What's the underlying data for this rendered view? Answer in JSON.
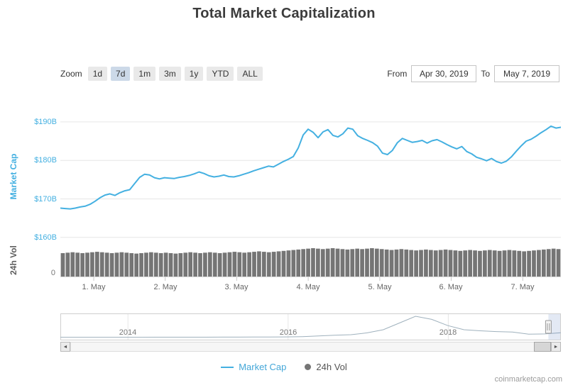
{
  "title": "Total Market Capitalization",
  "attribution": "coinmarketcap.com",
  "toolbar": {
    "zoom_label": "Zoom",
    "zoom_options": [
      "1d",
      "7d",
      "1m",
      "3m",
      "1y",
      "YTD",
      "ALL"
    ],
    "selected_zoom": "7d",
    "from_label": "From",
    "from_value": "Apr 30, 2019",
    "to_label": "To",
    "to_value": "May 7, 2019"
  },
  "legend": {
    "items": [
      {
        "label": "Market Cap",
        "color": "#44b0e1"
      },
      {
        "label": "24h Vol",
        "color": "#757575"
      }
    ]
  },
  "chart_data": {
    "type": "line",
    "title": "Total Market Capitalization",
    "y_axis_title": "Market Cap",
    "volume_axis_title": "24h Vol",
    "ylim": [
      160,
      192
    ],
    "y_ticks": [
      {
        "label": "$190B",
        "value": 190
      },
      {
        "label": "$180B",
        "value": 180
      },
      {
        "label": "$170B",
        "value": 170
      },
      {
        "label": "$160B",
        "value": 160
      }
    ],
    "volume_ticks": [
      "0"
    ],
    "x_ticks": [
      "1. May",
      "2. May",
      "3. May",
      "4. May",
      "5. May",
      "6. May",
      "7. May"
    ],
    "x_range": [
      "Apr 30, 2019",
      "May 7, 2019"
    ],
    "colors": {
      "market_cap": "#44b0e1",
      "volume": "#757575",
      "grid": "#e6e6e6"
    },
    "series": [
      {
        "name": "Market Cap",
        "type": "line",
        "unit": "$B",
        "values": [
          167.6,
          167.5,
          167.4,
          167.6,
          167.9,
          168.1,
          168.6,
          169.4,
          170.3,
          171.0,
          171.3,
          170.9,
          171.6,
          172.1,
          172.4,
          174.0,
          175.6,
          176.4,
          176.2,
          175.5,
          175.2,
          175.5,
          175.4,
          175.3,
          175.6,
          175.8,
          176.1,
          176.5,
          177.0,
          176.6,
          176.0,
          175.7,
          175.9,
          176.2,
          175.8,
          175.7,
          176.0,
          176.4,
          176.8,
          177.3,
          177.7,
          178.1,
          178.5,
          178.3,
          179.0,
          179.7,
          180.3,
          181.0,
          183.2,
          186.6,
          188.1,
          187.3,
          185.9,
          187.4,
          188.0,
          186.5,
          186.1,
          186.9,
          188.4,
          188.1,
          186.4,
          185.7,
          185.2,
          184.6,
          183.7,
          181.9,
          181.5,
          182.6,
          184.6,
          185.7,
          185.2,
          184.7,
          184.9,
          185.2,
          184.5,
          185.1,
          185.4,
          184.8,
          184.1,
          183.5,
          183.0,
          183.6,
          182.3,
          181.7,
          180.8,
          180.4,
          179.9,
          180.5,
          179.7,
          179.3,
          179.8,
          180.9,
          182.4,
          183.8,
          185.0,
          185.5,
          186.3,
          187.2,
          188.0,
          188.9,
          188.4,
          188.6
        ]
      },
      {
        "name": "24h Vol",
        "type": "bar",
        "unit": "$B",
        "values": [
          52,
          53,
          54,
          53,
          52,
          53,
          54,
          55,
          54,
          53,
          52,
          53,
          54,
          53,
          52,
          51,
          52,
          53,
          54,
          53,
          52,
          53,
          52,
          51,
          52,
          53,
          54,
          53,
          52,
          53,
          54,
          53,
          52,
          53,
          54,
          55,
          54,
          53,
          54,
          55,
          56,
          55,
          54,
          55,
          56,
          57,
          58,
          59,
          60,
          61,
          62,
          63,
          62,
          61,
          62,
          63,
          62,
          61,
          60,
          61,
          62,
          61,
          62,
          63,
          62,
          61,
          60,
          59,
          60,
          61,
          60,
          59,
          58,
          59,
          60,
          59,
          58,
          59,
          60,
          59,
          58,
          57,
          58,
          59,
          58,
          57,
          58,
          59,
          58,
          57,
          58,
          59,
          58,
          57,
          56,
          57,
          58,
          59,
          60,
          61,
          62,
          61
        ]
      }
    ],
    "navigator": {
      "ticks": [
        "2014",
        "2016",
        "2018"
      ],
      "values": [
        10,
        10,
        11,
        11,
        12,
        12,
        13,
        14,
        15,
        15,
        16,
        17,
        18,
        20,
        25,
        35,
        60,
        90,
        110,
        180,
        300,
        560,
        820,
        700,
        460,
        300,
        260,
        230,
        210,
        130,
        140,
        185
      ],
      "selected_range_fraction": 0.975
    }
  },
  "scrollbar": {
    "left_arrow": "◄",
    "right_arrow": "►"
  }
}
